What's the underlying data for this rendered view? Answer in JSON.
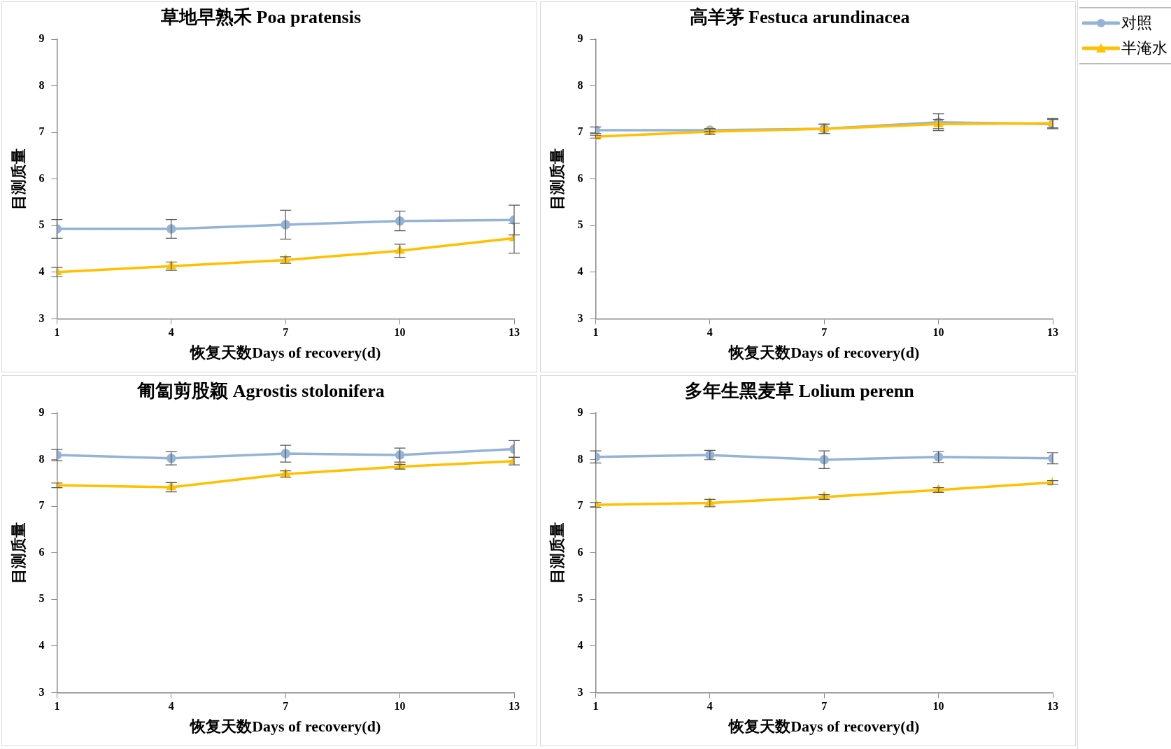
{
  "chart_data": [
    {
      "type": "line",
      "title": "草地早熟禾 Poa pratensis",
      "xlabel": "恢复天数Days of recovery(d)",
      "ylabel": "目测质量",
      "x": [
        1,
        4,
        7,
        10,
        13
      ],
      "xlim": [
        1,
        13
      ],
      "xticks": [
        1,
        4,
        7,
        10,
        13
      ],
      "ylim": [
        3,
        9
      ],
      "yticks": [
        3,
        4,
        5,
        6,
        7,
        8,
        9
      ],
      "legend": "right",
      "series": [
        {
          "name": "对照",
          "color": "#95b3d7",
          "marker": "circle",
          "values": [
            4.93,
            4.93,
            5.02,
            5.1,
            5.12
          ],
          "errors": [
            0.2,
            0.2,
            0.31,
            0.21,
            0.32
          ]
        },
        {
          "name": "半淹水",
          "color": "#ffc000",
          "marker": "triangle",
          "values": [
            4.0,
            4.13,
            4.26,
            4.46,
            4.73
          ],
          "errors": [
            0.1,
            0.09,
            0.07,
            0.14,
            0.32
          ]
        }
      ]
    },
    {
      "type": "line",
      "title": "高羊茅 Festuca arundinacea",
      "xlabel": "恢复天数Days of recovery(d)",
      "ylabel": "目测质量",
      "x": [
        1,
        4,
        7,
        10,
        13
      ],
      "xlim": [
        1,
        13
      ],
      "xticks": [
        1,
        4,
        7,
        10,
        13
      ],
      "ylim": [
        3,
        9
      ],
      "yticks": [
        3,
        4,
        5,
        6,
        7,
        8,
        9
      ],
      "series": [
        {
          "color": "#95b3d7",
          "marker": "circle",
          "values": [
            7.05,
            7.05,
            7.08,
            7.22,
            7.18
          ],
          "errors": [
            0.07,
            0.03,
            0.1,
            0.18,
            0.1
          ]
        },
        {
          "color": "#ffc000",
          "marker": "triangle",
          "values": [
            6.91,
            7.02,
            7.08,
            7.18,
            7.2
          ],
          "errors": [
            0.03,
            0.06,
            0.1,
            0.1,
            0.1
          ]
        }
      ]
    },
    {
      "type": "line",
      "title": "匍匐剪股颖 Agrostis stolonifera",
      "xlabel": "恢复天数Days of recovery(d)",
      "ylabel": "目测质量",
      "x": [
        1,
        4,
        7,
        10,
        13
      ],
      "xlim": [
        1,
        13
      ],
      "xticks": [
        1,
        4,
        7,
        10,
        13
      ],
      "ylim": [
        3,
        9
      ],
      "yticks": [
        3,
        4,
        5,
        6,
        7,
        8,
        9
      ],
      "series": [
        {
          "color": "#95b3d7",
          "marker": "circle",
          "values": [
            8.1,
            8.03,
            8.13,
            8.1,
            8.23
          ],
          "errors": [
            0.12,
            0.14,
            0.18,
            0.15,
            0.18
          ]
        },
        {
          "color": "#ffc000",
          "marker": "triangle",
          "values": [
            7.45,
            7.41,
            7.69,
            7.85,
            7.97
          ],
          "errors": [
            0.05,
            0.1,
            0.07,
            0.05,
            0.08
          ]
        }
      ]
    },
    {
      "type": "line",
      "title": "多年生黑麦草 Lolium perenn",
      "xlabel": "恢复天数Days of recovery(d)",
      "ylabel": "目测质量",
      "x": [
        1,
        4,
        7,
        10,
        13
      ],
      "xlim": [
        1,
        13
      ],
      "xticks": [
        1,
        4,
        7,
        10,
        13
      ],
      "ylim": [
        3,
        9
      ],
      "yticks": [
        3,
        4,
        5,
        6,
        7,
        8,
        9
      ],
      "series": [
        {
          "color": "#95b3d7",
          "marker": "circle",
          "values": [
            8.06,
            8.1,
            8.0,
            8.06,
            8.03
          ],
          "errors": [
            0.13,
            0.1,
            0.19,
            0.12,
            0.12
          ]
        },
        {
          "color": "#ffc000",
          "marker": "triangle",
          "values": [
            7.03,
            7.07,
            7.2,
            7.35,
            7.51
          ],
          "errors": [
            0.05,
            0.08,
            0.05,
            0.05,
            0.04
          ]
        }
      ]
    }
  ]
}
